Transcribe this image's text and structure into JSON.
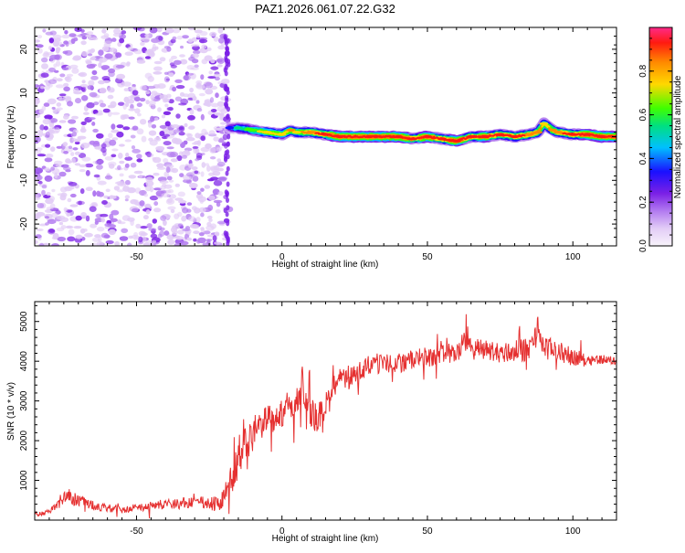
{
  "title": "PAZ1.2026.061.07.22.G32",
  "colors": {
    "signal_line": "#e53030",
    "scatter": "#8a2be2",
    "colormap": [
      "#f8f4fb",
      "#e2ccf6",
      "#b27af0",
      "#7b20e6",
      "#1a10ff",
      "#00c0ff",
      "#00e080",
      "#40ff00",
      "#ffd800",
      "#ff8a00",
      "#ff1a10",
      "#ff2a8a"
    ]
  },
  "chart_data": [
    {
      "type": "heatmap",
      "title": "PAZ1.2026.061.07.22.G32",
      "xlabel": "Height of straight line (km)",
      "ylabel": "Frequency (Hz)",
      "xlim": [
        -85,
        115
      ],
      "ylim": [
        -25,
        25
      ],
      "x_ticks": [
        -50,
        0,
        50,
        100
      ],
      "y_ticks": [
        20,
        10,
        0,
        -10,
        -20
      ],
      "x_tick_labels": [
        "-50",
        "0",
        "50",
        "100"
      ],
      "y_tick_labels": [
        "20",
        "10",
        "0",
        "-10",
        "-20"
      ],
      "noise_region_x": [
        -85,
        -18
      ],
      "signal_ridge": {
        "x": [
          -18,
          -15,
          -10,
          -5,
          0,
          3,
          5,
          10,
          15,
          20,
          30,
          40,
          45,
          50,
          55,
          60,
          65,
          70,
          75,
          80,
          85,
          88,
          90,
          93,
          95,
          100,
          105,
          110,
          115
        ],
        "frequency": [
          2,
          2,
          1.5,
          1,
          0.5,
          1.5,
          1,
          1,
          0.5,
          0,
          0,
          0,
          -0.5,
          0,
          -0.5,
          -1,
          0,
          0,
          0.5,
          0,
          0.5,
          1,
          3,
          1.5,
          1,
          0.5,
          0.5,
          0,
          0
        ],
        "amplitude": [
          0.4,
          0.55,
          0.65,
          0.75,
          0.7,
          0.8,
          0.75,
          0.85,
          0.9,
          0.95,
          0.95,
          0.95,
          0.9,
          0.92,
          0.9,
          0.92,
          0.9,
          0.92,
          0.88,
          0.9,
          0.85,
          0.8,
          0.75,
          0.8,
          0.85,
          0.9,
          0.92,
          0.95,
          0.95
        ]
      },
      "colorbar": {
        "label": "Normalized spectral amplitude",
        "range": [
          0.0,
          1.0
        ],
        "ticks": [
          0.0,
          0.2,
          0.4,
          0.6,
          0.8
        ],
        "tick_labels": [
          "0.0",
          "0.2",
          "0.4",
          "0.6",
          "0.8"
        ]
      }
    },
    {
      "type": "line",
      "xlabel": "Height of straight line (km)",
      "ylabel": "SNR (10 * v/v)",
      "xlim": [
        -85,
        115
      ],
      "ylim": [
        0,
        5500
      ],
      "x_ticks": [
        -50,
        0,
        50,
        100
      ],
      "y_ticks": [
        1000,
        2000,
        3000,
        4000,
        5000
      ],
      "x_tick_labels": [
        "-50",
        "0",
        "50",
        "100"
      ],
      "y_tick_labels": [
        "1000",
        "2000",
        "3000",
        "4000",
        "5000"
      ],
      "series": [
        {
          "name": "SNR",
          "x": [
            -85,
            -80,
            -76,
            -74,
            -72,
            -70,
            -65,
            -60,
            -55,
            -50,
            -45,
            -40,
            -35,
            -30,
            -25,
            -22,
            -20,
            -18,
            -16,
            -14,
            -13,
            -12,
            -10,
            -8,
            -5,
            -2,
            0,
            3,
            5,
            7,
            8,
            10,
            12,
            15,
            18,
            20,
            25,
            28,
            30,
            35,
            40,
            45,
            50,
            55,
            60,
            64,
            65,
            70,
            75,
            80,
            85,
            88,
            90,
            95,
            100,
            105,
            110,
            115
          ],
          "y": [
            150,
            200,
            450,
            700,
            550,
            500,
            380,
            300,
            280,
            300,
            350,
            400,
            420,
            450,
            400,
            400,
            550,
            900,
            1300,
            1700,
            2300,
            1900,
            2100,
            2300,
            2500,
            2650,
            2700,
            2900,
            3000,
            3500,
            3050,
            2700,
            2500,
            2900,
            3300,
            3500,
            3650,
            3800,
            3900,
            3950,
            3950,
            4050,
            4100,
            4150,
            4200,
            4600,
            4300,
            4300,
            4200,
            4250,
            4300,
            4800,
            4350,
            4250,
            4100,
            4050,
            4050,
            4000
          ],
          "noise_amplitude": [
            60,
            60,
            150,
            200,
            180,
            150,
            120,
            100,
            100,
            100,
            120,
            130,
            140,
            160,
            180,
            200,
            260,
            350,
            450,
            500,
            500,
            450,
            400,
            380,
            380,
            380,
            380,
            400,
            400,
            420,
            400,
            400,
            380,
            350,
            350,
            330,
            300,
            280,
            280,
            260,
            250,
            250,
            250,
            250,
            260,
            300,
            280,
            260,
            260,
            270,
            300,
            350,
            300,
            250,
            220,
            150,
            120,
            100
          ]
        }
      ]
    }
  ]
}
